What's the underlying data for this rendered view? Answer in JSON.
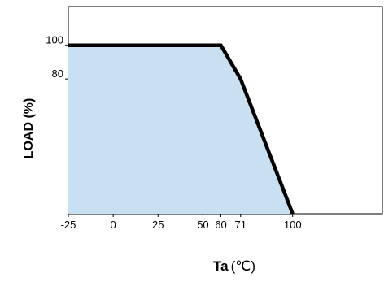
{
  "chart_data": {
    "type": "area",
    "title": "",
    "xlabel": "Ta",
    "xlabel_unit": "(℃)",
    "ylabel": "LOAD (%)",
    "x_ticks": [
      "-25",
      "0",
      "25",
      "50",
      "60",
      "71",
      "100"
    ],
    "y_ticks": [
      "100",
      "80"
    ],
    "xlim": [
      -25,
      150
    ],
    "ylim": [
      0,
      123
    ],
    "grid": false,
    "series": [
      {
        "x": [
          -25,
          60,
          71,
          100
        ],
        "y": [
          100,
          100,
          80,
          0
        ]
      }
    ],
    "colors": {
      "fill": "#c9dff2",
      "line": "#000000",
      "axis": "#000000"
    }
  }
}
